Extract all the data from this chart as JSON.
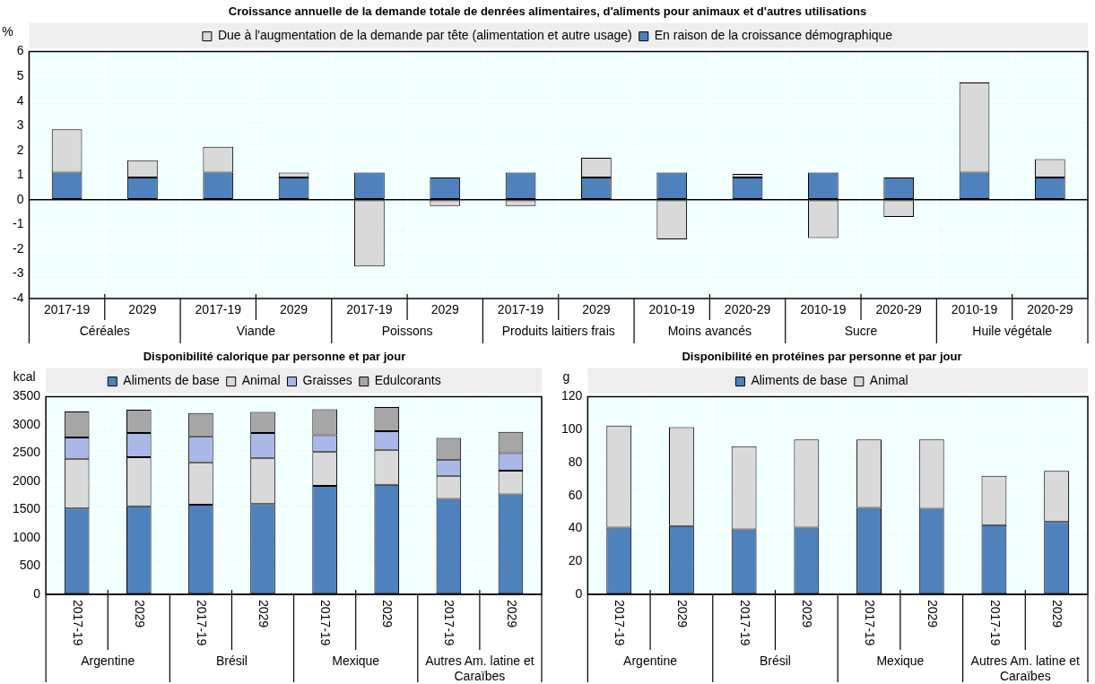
{
  "chart_data": [
    {
      "type": "bar",
      "title": "Croissance annuelle de la demande totale de denrées alimentaires, d'aliments pour animaux et d'autres utilisations",
      "ylabel": "%",
      "categories": [
        "2017-19",
        "2029",
        "2017-19",
        "2029",
        "2017-19",
        "2029",
        "2017-19",
        "2029",
        "2010-19",
        "2020-29",
        "2010-19",
        "2020-29",
        "2010-19",
        "2020-29"
      ],
      "annotations": [
        "Céréales",
        "Viande",
        "Poissons",
        "Produits laitiers frais",
        "Moins avancés",
        "Sucre",
        "Huile végétale"
      ],
      "stacked": true,
      "ylim": [
        -4,
        6
      ],
      "yticks": [
        -4,
        -3,
        -2,
        -1,
        0,
        1,
        2,
        3,
        4,
        5,
        6
      ],
      "grid": true,
      "legend": "top",
      "series": [
        {
          "name": "En raison de la croissance démographique",
          "color": "#4f81bd",
          "values": [
            1.1,
            0.9,
            1.1,
            0.9,
            1.1,
            0.9,
            1.1,
            0.9,
            1.1,
            0.9,
            1.1,
            0.9,
            1.1,
            0.9
          ]
        },
        {
          "name": "Due à l'augmentation de la demande par tête (alimentation et autre usage)",
          "color": "#d9d9d9",
          "values": [
            1.75,
            0.7,
            1.05,
            0.2,
            -2.7,
            -0.25,
            -0.25,
            0.8,
            -1.6,
            0.15,
            -1.55,
            -0.7,
            3.65,
            0.75
          ]
        }
      ]
    },
    {
      "type": "bar",
      "title": "Disponibilité calorique par personne et par jour",
      "ylabel": "kcal",
      "categories": [
        "2017-19",
        "2029",
        "2017-19",
        "2029",
        "2017-19",
        "2029",
        "2017-19",
        "2029"
      ],
      "annotations": [
        "Argentine",
        "Brésil",
        "Mexique",
        "Autres Am. latine et Caraïbes"
      ],
      "stacked": true,
      "ylim": [
        0,
        3500
      ],
      "yticks": [
        0,
        500,
        1000,
        1500,
        2000,
        2500,
        3000,
        3500
      ],
      "grid": true,
      "legend": "top",
      "series": [
        {
          "name": "Aliments de base",
          "color": "#4f81bd",
          "values": [
            1520,
            1560,
            1590,
            1600,
            1920,
            1940,
            1690,
            1770
          ]
        },
        {
          "name": "Animal",
          "color": "#d9d9d9",
          "values": [
            880,
            870,
            750,
            810,
            600,
            620,
            410,
            420
          ]
        },
        {
          "name": "Graisses",
          "color": "#a9b8e6",
          "values": [
            380,
            430,
            460,
            450,
            300,
            330,
            280,
            310
          ]
        },
        {
          "name": "Edulcorants",
          "color": "#a6a6a6",
          "values": [
            460,
            410,
            410,
            370,
            460,
            430,
            390,
            380
          ]
        }
      ]
    },
    {
      "type": "bar",
      "title": "Disponibilité en protéines par personne et par jour",
      "ylabel": "g",
      "categories": [
        "2017-19",
        "2029",
        "2017-19",
        "2029",
        "2017-19",
        "2029",
        "2017-19",
        "2029"
      ],
      "annotations": [
        "Argentine",
        "Brésil",
        "Mexique",
        "Autres Am. latine et Caraïbes"
      ],
      "stacked": true,
      "ylim": [
        0,
        120
      ],
      "yticks": [
        0,
        20,
        40,
        60,
        80,
        100,
        120
      ],
      "grid": true,
      "legend": "top",
      "series": [
        {
          "name": "Aliments de base",
          "color": "#4f81bd",
          "values": [
            40.5,
            41.5,
            39.5,
            40.5,
            52.5,
            52,
            42,
            44
          ]
        },
        {
          "name": "Animal",
          "color": "#d9d9d9",
          "values": [
            62,
            60,
            50.5,
            53.5,
            41.5,
            42,
            30,
            31
          ]
        }
      ]
    }
  ]
}
